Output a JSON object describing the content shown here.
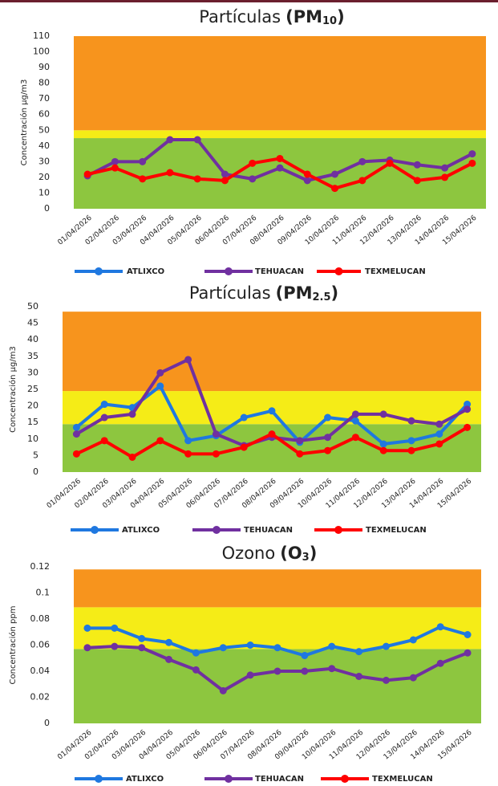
{
  "chart_data": [
    {
      "type": "line",
      "title": "Partículas",
      "pollutant": "(PM",
      "pollutant_sub": "10",
      "pollutant_end": ")",
      "y_label": "Concentración µg/m3",
      "categories": [
        "01/04/2026",
        "02/04/2026",
        "03/04/2026",
        "04/04/2026",
        "05/04/2026",
        "06/04/2026",
        "07/04/2026",
        "08/04/2026",
        "09/04/2026",
        "10/04/2026",
        "11/04/2026",
        "12/04/2026",
        "13/04/2026",
        "14/04/2026",
        "15/04/2026"
      ],
      "ylim": [
        0,
        110
      ],
      "yticks": [
        0,
        10,
        20,
        30,
        40,
        50,
        60,
        70,
        80,
        90,
        100,
        110
      ],
      "bands": [
        {
          "from": 0,
          "to": 45,
          "color": "#8dc63f"
        },
        {
          "from": 45,
          "to": 50,
          "color": "#f5ec17"
        },
        {
          "from": 50,
          "to": 110,
          "color": "#f7941d"
        }
      ],
      "series": [
        {
          "name": "ATLIXCO",
          "color": "#1f78e0",
          "values": [
            null,
            null,
            null,
            null,
            null,
            null,
            null,
            null,
            null,
            null,
            null,
            null,
            null,
            null,
            null
          ]
        },
        {
          "name": "TEHUACAN",
          "color": "#7030a0",
          "values": [
            21,
            30,
            30,
            44,
            44,
            22,
            19,
            26,
            18,
            22,
            30,
            31,
            28,
            26,
            35
          ]
        },
        {
          "name": "TEXMELUCAN",
          "color": "#ff0000",
          "values": [
            22,
            26,
            19,
            23,
            19,
            18,
            29,
            32,
            22,
            13,
            18,
            29,
            18,
            20,
            29
          ]
        }
      ]
    },
    {
      "type": "line",
      "title": "Partículas",
      "pollutant": "(PM",
      "pollutant_sub": "2.5",
      "pollutant_end": ")",
      "y_label": "Concentración µg/m3",
      "categories": [
        "01/04/2026",
        "02/04/2026",
        "03/04/2026",
        "04/04/2026",
        "05/04/2026",
        "06/04/2026",
        "07/04/2026",
        "08/04/2026",
        "09/04/2026",
        "10/04/2026",
        "11/04/2026",
        "12/04/2026",
        "13/04/2026",
        "14/04/2026",
        "15/04/2026"
      ],
      "ylim": [
        0,
        50
      ],
      "yticks": [
        0,
        5,
        10,
        15,
        20,
        25,
        30,
        35,
        40,
        45,
        50
      ],
      "bands": [
        {
          "from": 0,
          "to": 14.5,
          "color": "#8dc63f"
        },
        {
          "from": 14.5,
          "to": 24.5,
          "color": "#f5ec17"
        },
        {
          "from": 24.5,
          "to": 48.5,
          "color": "#f7941d"
        }
      ],
      "series": [
        {
          "name": "ATLIXCO",
          "color": "#1f78e0",
          "values": [
            13.5,
            20.5,
            19.5,
            26,
            9.5,
            11,
            16.5,
            18.5,
            9,
            16.5,
            15.5,
            8.5,
            9.5,
            11.5,
            20.5
          ]
        },
        {
          "name": "TEHUACAN",
          "color": "#7030a0",
          "values": [
            11.5,
            16.5,
            17.5,
            30,
            34,
            11.5,
            8,
            10.5,
            9.5,
            10.5,
            17.5,
            17.5,
            15.5,
            14.5,
            19
          ]
        },
        {
          "name": "TEXMELUCAN",
          "color": "#ff0000",
          "values": [
            5.5,
            9.5,
            4.5,
            9.5,
            5.5,
            5.5,
            7.5,
            11.5,
            5.5,
            6.5,
            10.5,
            6.5,
            6.5,
            8.5,
            13.5
          ]
        }
      ]
    },
    {
      "type": "line",
      "title": "Ozono",
      "pollutant": "(O",
      "pollutant_sub": "3",
      "pollutant_end": ")",
      "y_label": "Concentración ppm",
      "categories": [
        "01/04/2026",
        "02/04/2026",
        "03/04/2026",
        "04/04/2026",
        "05/04/2026",
        "06/04/2026",
        "07/04/2026",
        "08/04/2026",
        "09/04/2026",
        "10/04/2026",
        "11/04/2026",
        "12/04/2026",
        "13/04/2026",
        "14/04/2026",
        "15/04/2026"
      ],
      "ylim": [
        0,
        0.12
      ],
      "yticks": [
        0,
        0.02,
        0.04,
        0.06,
        0.08,
        0.1,
        0.12
      ],
      "bands": [
        {
          "from": 0,
          "to": 0.057,
          "color": "#8dc63f"
        },
        {
          "from": 0.057,
          "to": 0.089,
          "color": "#f5ec17"
        },
        {
          "from": 0.089,
          "to": 0.118,
          "color": "#f7941d"
        }
      ],
      "series": [
        {
          "name": "ATLIXCO",
          "color": "#1f78e0",
          "values": [
            0.073,
            0.073,
            0.065,
            0.062,
            0.054,
            0.058,
            0.06,
            0.058,
            0.052,
            0.059,
            0.055,
            0.059,
            0.064,
            0.074,
            0.068
          ]
        },
        {
          "name": "TEHUACAN",
          "color": "#7030a0",
          "values": [
            0.058,
            0.059,
            0.058,
            0.049,
            0.041,
            0.025,
            0.037,
            0.04,
            0.04,
            0.042,
            0.036,
            0.033,
            0.035,
            0.046,
            0.054
          ]
        },
        {
          "name": "TEXMELUCAN",
          "color": "#ff0000",
          "values": [
            null,
            null,
            null,
            null,
            null,
            null,
            null,
            null,
            null,
            null,
            null,
            null,
            null,
            null,
            null
          ]
        }
      ]
    }
  ]
}
